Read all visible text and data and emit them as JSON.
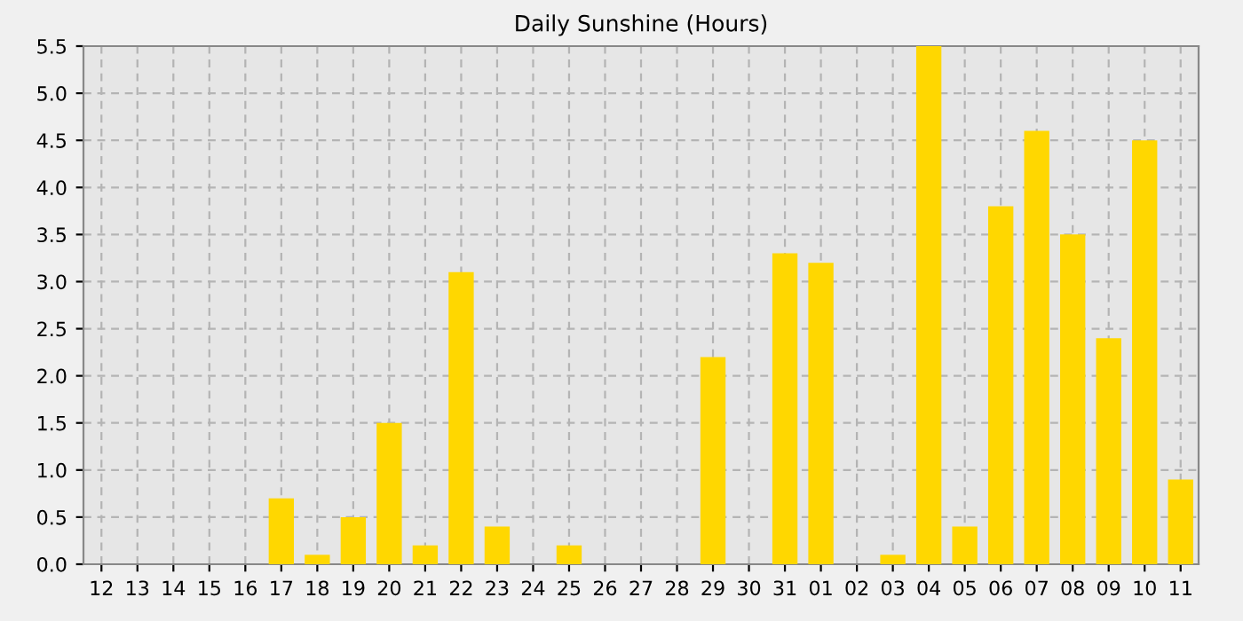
{
  "chart_data": {
    "type": "bar",
    "title": "Daily Sunshine (Hours)",
    "categories": [
      "12",
      "13",
      "14",
      "15",
      "16",
      "17",
      "18",
      "19",
      "20",
      "21",
      "22",
      "23",
      "24",
      "25",
      "26",
      "27",
      "28",
      "29",
      "30",
      "31",
      "01",
      "02",
      "03",
      "04",
      "05",
      "06",
      "07",
      "08",
      "09",
      "10",
      "11"
    ],
    "values": [
      0,
      0,
      0,
      0,
      0,
      0.7,
      0.1,
      0.5,
      1.5,
      0.2,
      3.1,
      0.4,
      0,
      0.2,
      0,
      0,
      0,
      2.2,
      0,
      3.3,
      3.2,
      0,
      0.1,
      5.5,
      0.4,
      3.8,
      4.6,
      3.5,
      2.4,
      4.5,
      0.9
    ],
    "color": "#ffd700",
    "ylim": [
      0,
      5.5
    ],
    "yticks": [
      {
        "value": 0,
        "label": "0.0"
      },
      {
        "value": 0.5,
        "label": "0.5"
      },
      {
        "value": 1,
        "label": "1.0"
      },
      {
        "value": 1.5,
        "label": "1.5"
      },
      {
        "value": 2,
        "label": "2.0"
      },
      {
        "value": 2.5,
        "label": "2.5"
      },
      {
        "value": 3,
        "label": "3.0"
      },
      {
        "value": 3.5,
        "label": "3.5"
      },
      {
        "value": 4,
        "label": "4.0"
      },
      {
        "value": 4.5,
        "label": "4.5"
      },
      {
        "value": 5,
        "label": "5.0"
      },
      {
        "value": 5.5,
        "label": "5.5"
      }
    ],
    "grid": true,
    "legend": false
  }
}
